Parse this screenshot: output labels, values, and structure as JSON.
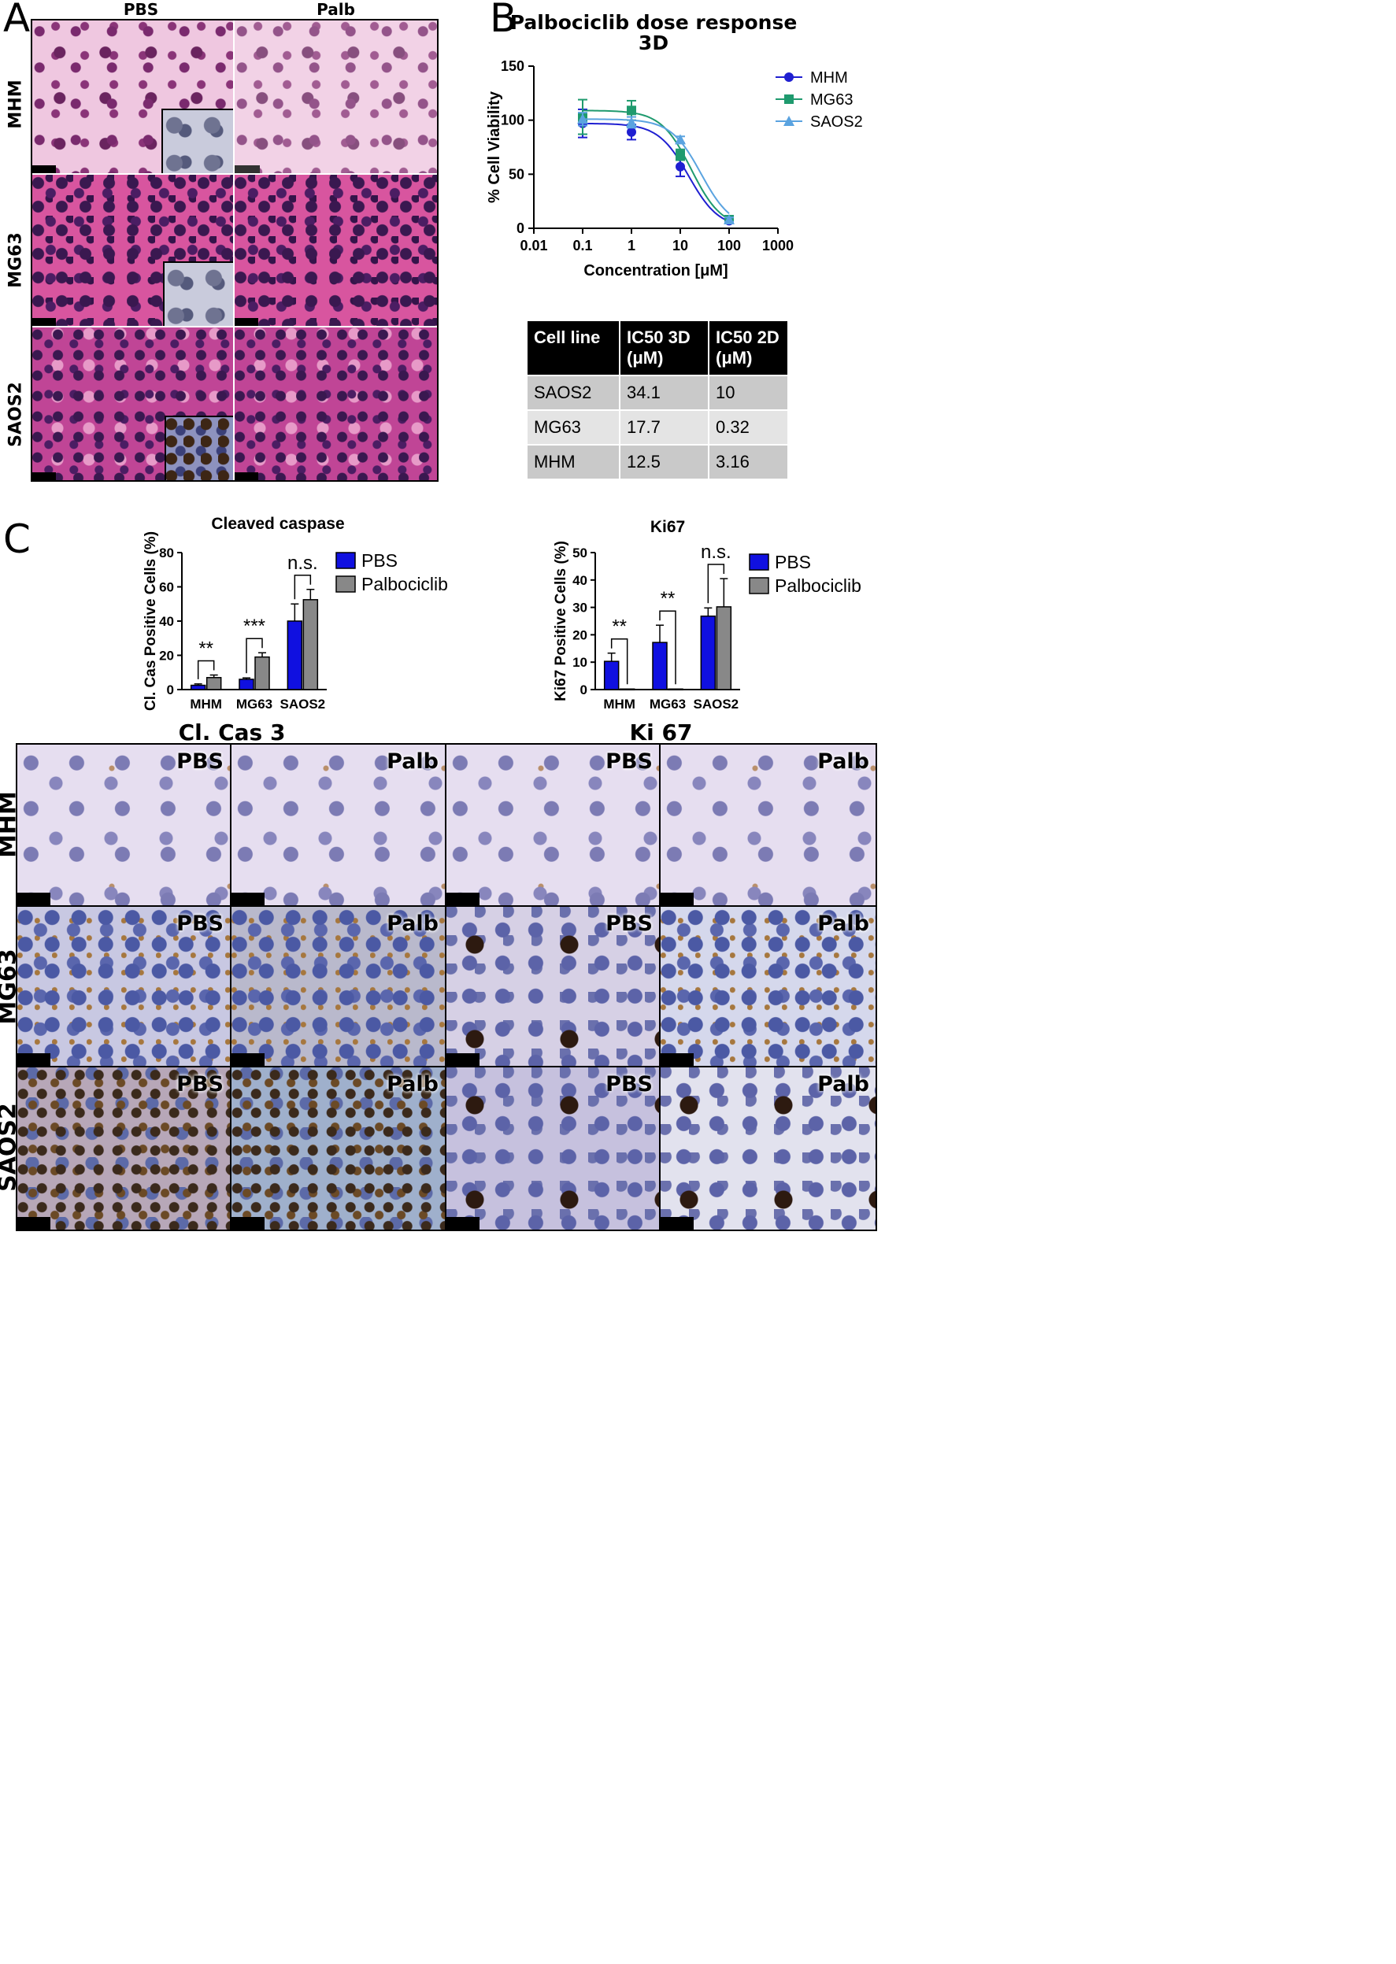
{
  "panels": {
    "a": {
      "letter": "A",
      "columns": [
        "PBS",
        "Palb"
      ],
      "rows": [
        "MHM",
        "MG63",
        "SAOS2"
      ]
    },
    "b": {
      "letter": "B",
      "title_line1": "Palbociclib dose response",
      "title_line2": "3D",
      "table": {
        "headers": [
          "Cell line",
          "IC50 3D (μM)",
          "IC50 2D (μM)"
        ],
        "rows": [
          [
            "SAOS2",
            "34.1",
            "10"
          ],
          [
            "MG63",
            "17.7",
            "0.32"
          ],
          [
            "MHM",
            "12.5",
            "3.16"
          ]
        ]
      }
    },
    "c": {
      "letter": "C",
      "section_titles": [
        "Cl. Cas 3",
        "Ki 67"
      ],
      "rows": [
        "MHM",
        "MG63",
        "SAOS2"
      ],
      "tile_labels": [
        "PBS",
        "Palb",
        "PBS",
        "Palb"
      ]
    }
  },
  "chart_data": [
    {
      "type": "line",
      "title": "Palbociclib dose response 3D",
      "xlabel": "Concentration [μM]",
      "ylabel": "% Cell Viability",
      "xscale": "log",
      "xlim": [
        0.01,
        1000
      ],
      "ylim": [
        0,
        150
      ],
      "xticks": [
        "0.01",
        "0.1",
        "1",
        "10",
        "100",
        "1000"
      ],
      "yticks": [
        "0",
        "50",
        "100",
        "150"
      ],
      "legend": "top-right",
      "x": [
        0.1,
        1,
        10,
        100
      ],
      "series": [
        {
          "name": "MHM",
          "values": [
            97,
            89,
            57,
            7
          ],
          "errors": [
            13,
            7,
            9,
            2
          ],
          "color": "#1f1fd1",
          "marker": "circle"
        },
        {
          "name": "MG63",
          "values": [
            103,
            109,
            68,
            8
          ],
          "errors": [
            16,
            9,
            5,
            2
          ],
          "color": "#1f9a6e",
          "marker": "square"
        },
        {
          "name": "SAOS2",
          "values": [
            101,
            98,
            82,
            8
          ],
          "errors": [
            6,
            5,
            3,
            2
          ],
          "color": "#5aa3e0",
          "marker": "triangle"
        }
      ]
    },
    {
      "type": "bar",
      "title": "Cleaved caspase",
      "ylabel": "Cl. Cas Positive Cells  (%)",
      "categories": [
        "MHM",
        "MG63",
        "SAOS2"
      ],
      "ylim": [
        0,
        80
      ],
      "yticks": [
        "0",
        "20",
        "40",
        "60",
        "80"
      ],
      "legend": "right",
      "series": [
        {
          "name": "PBS",
          "values": [
            2.5,
            6,
            40
          ],
          "errors": [
            0.8,
            0.8,
            10
          ],
          "color": "#1010e0"
        },
        {
          "name": "Palbociclib",
          "values": [
            7,
            19,
            52.5
          ],
          "errors": [
            1.5,
            2.5,
            6
          ],
          "color": "#888888"
        }
      ],
      "significance": [
        "**",
        "***",
        "n.s."
      ]
    },
    {
      "type": "bar",
      "title": "Ki67",
      "ylabel": "Ki67 Positive Cells  (%)",
      "categories": [
        "MHM",
        "MG63",
        "SAOS2"
      ],
      "ylim": [
        0,
        50
      ],
      "yticks": [
        "0",
        "10",
        "20",
        "30",
        "40",
        "50"
      ],
      "legend": "right",
      "series": [
        {
          "name": "PBS",
          "values": [
            10.3,
            17.2,
            26.8
          ],
          "errors": [
            3,
            6.3,
            3
          ],
          "color": "#1010e0"
        },
        {
          "name": "Palbociclib",
          "values": [
            0.2,
            0.2,
            30.2
          ],
          "errors": [
            0,
            0,
            10.3
          ],
          "color": "#888888"
        }
      ],
      "significance": [
        "**",
        "**",
        "n.s."
      ]
    }
  ]
}
